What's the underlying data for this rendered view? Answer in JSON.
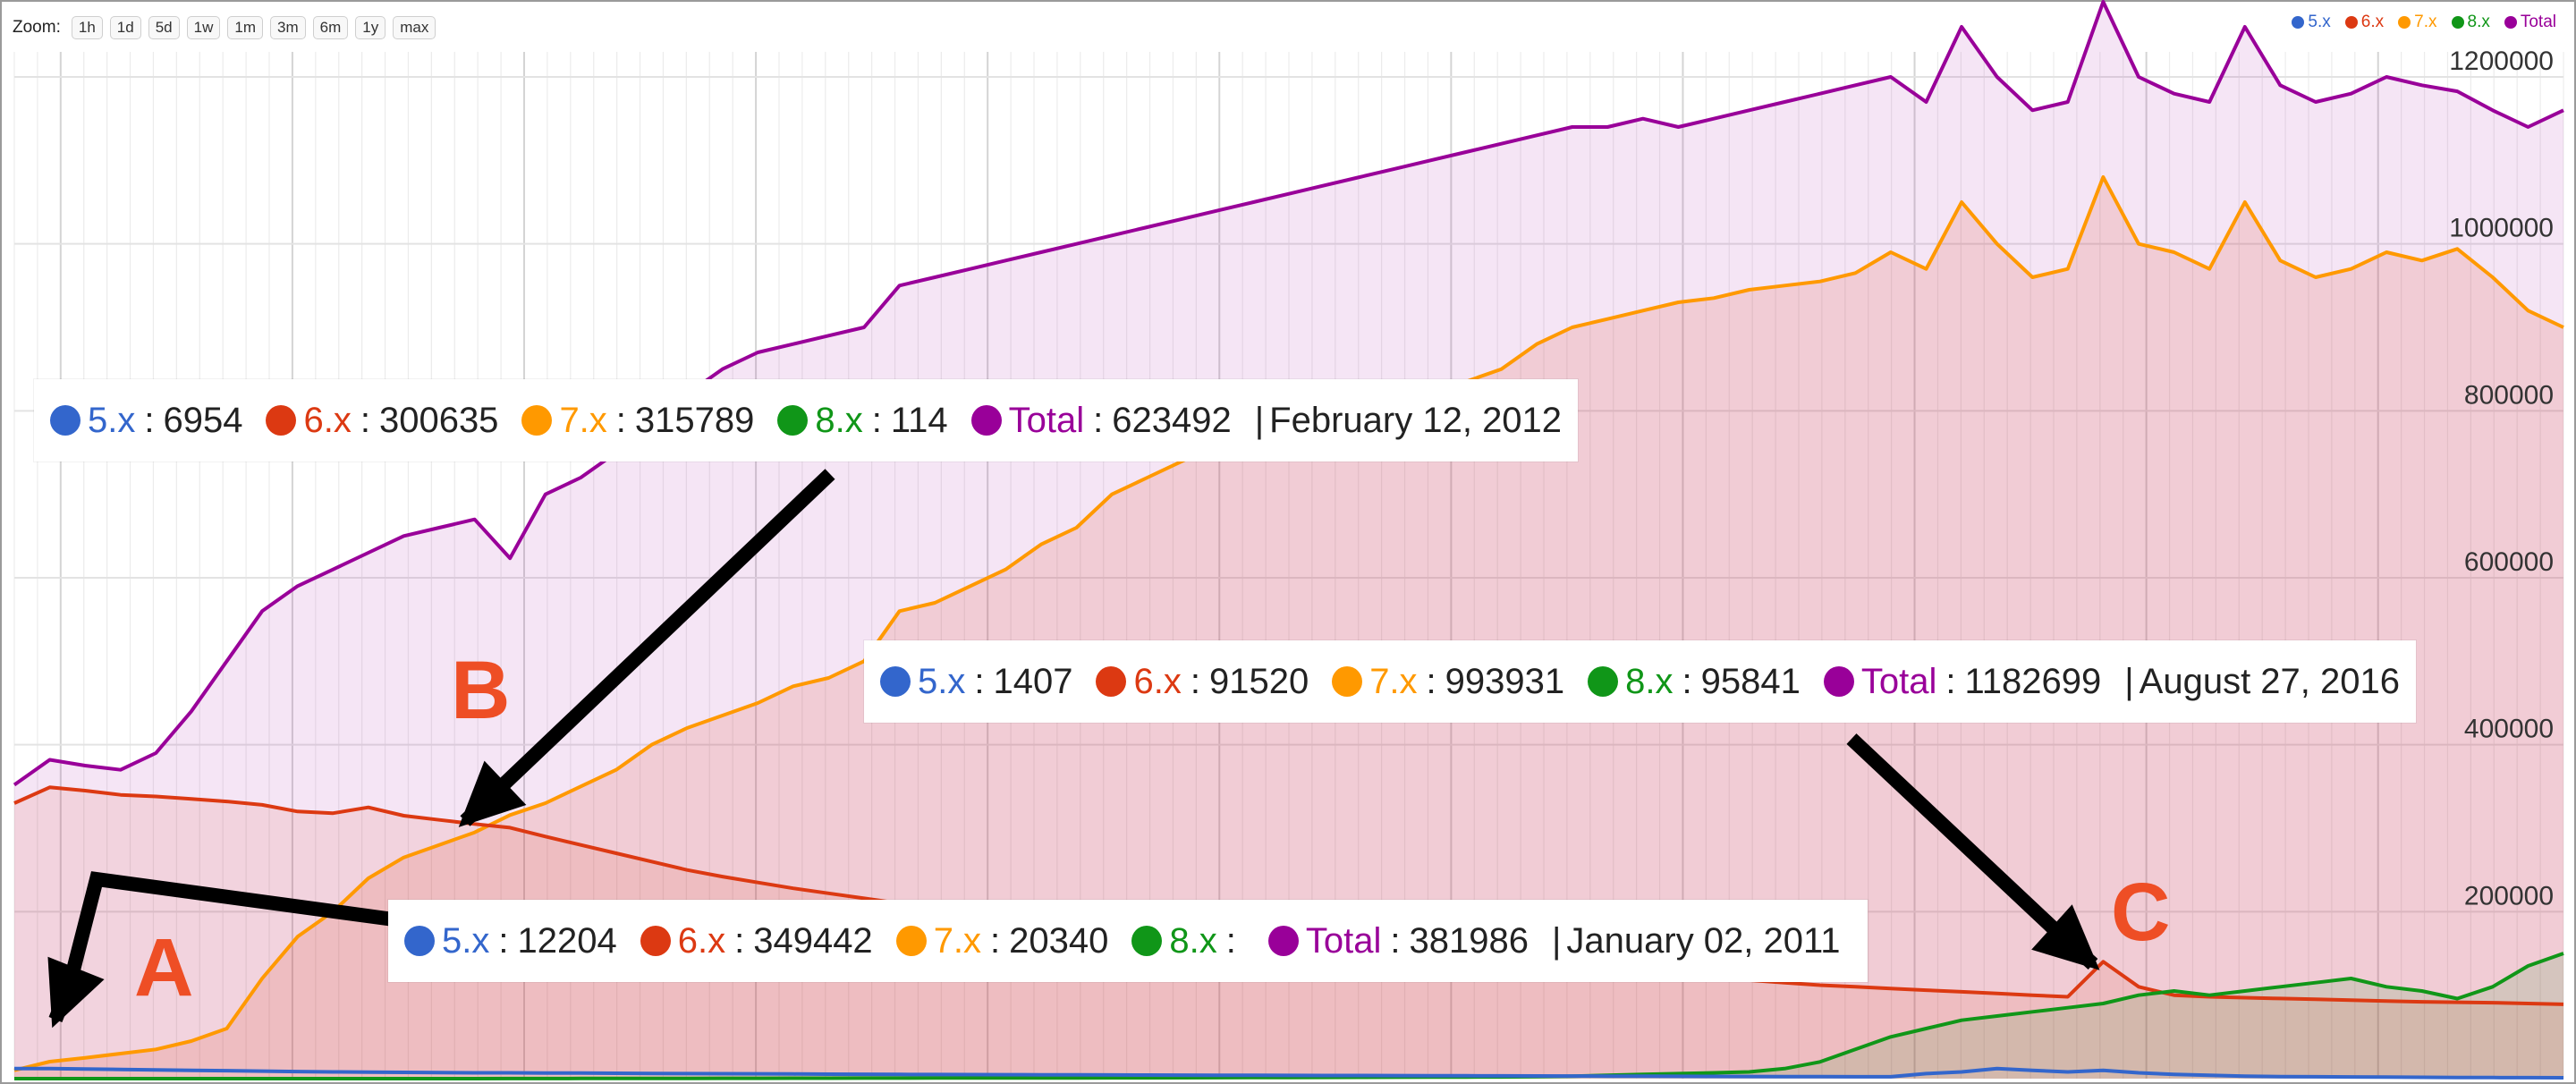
{
  "toolbar": {
    "zoom_label": "Zoom:",
    "zoom_buttons": [
      "1h",
      "1d",
      "5d",
      "1w",
      "1m",
      "3m",
      "6m",
      "1y",
      "max"
    ]
  },
  "colors": {
    "v5": "#3366cc",
    "v6": "#dc3912",
    "v7": "#ff9900",
    "v8": "#109618",
    "total": "#990099",
    "callout": "#ee4e25",
    "arrow": "#000000"
  },
  "legend": [
    {
      "label": "5.x",
      "color": "#3366cc"
    },
    {
      "label": "6.x",
      "color": "#dc3912"
    },
    {
      "label": "7.x",
      "color": "#ff9900"
    },
    {
      "label": "8.x",
      "color": "#109618"
    },
    {
      "label": "Total",
      "color": "#990099"
    }
  ],
  "tooltips": [
    {
      "items": [
        {
          "label": "5.x",
          "value": "6954",
          "color": "#3366cc"
        },
        {
          "label": "6.x",
          "value": "300635",
          "color": "#dc3912"
        },
        {
          "label": "7.x",
          "value": "315789",
          "color": "#ff9900"
        },
        {
          "label": "8.x",
          "value": "114",
          "color": "#109618"
        },
        {
          "label": "Total",
          "value": "623492",
          "color": "#990099"
        }
      ],
      "date": "February 12, 2012"
    },
    {
      "items": [
        {
          "label": "5.x",
          "value": "1407",
          "color": "#3366cc"
        },
        {
          "label": "6.x",
          "value": "91520",
          "color": "#dc3912"
        },
        {
          "label": "7.x",
          "value": "993931",
          "color": "#ff9900"
        },
        {
          "label": "8.x",
          "value": "95841",
          "color": "#109618"
        },
        {
          "label": "Total",
          "value": "1182699",
          "color": "#990099"
        }
      ],
      "date": "August 27, 2016"
    },
    {
      "items": [
        {
          "label": "5.x",
          "value": "12204",
          "color": "#3366cc"
        },
        {
          "label": "6.x",
          "value": "349442",
          "color": "#dc3912"
        },
        {
          "label": "7.x",
          "value": "20340",
          "color": "#ff9900"
        },
        {
          "label": "8.x",
          "value": "",
          "color": "#109618"
        },
        {
          "label": "Total",
          "value": "381986",
          "color": "#990099"
        }
      ],
      "date": "January 02, 2011"
    }
  ],
  "callouts": {
    "a": "A",
    "b": "B",
    "c": "C"
  },
  "chart_data": {
    "type": "area",
    "x_start": "2010-12",
    "x_end": "2017-01",
    "ylim": [
      0,
      1230000
    ],
    "y_ticks": [
      200000,
      400000,
      600000,
      800000,
      1000000,
      1200000
    ],
    "y_tick_labels": [
      "200000",
      "400000",
      "600000",
      "800000",
      "1000000",
      "1200000"
    ],
    "grid": true,
    "legend_position": "top-right",
    "x": [
      "2010-12",
      "2011-01",
      "2011-02",
      "2011-03",
      "2011-04",
      "2011-05",
      "2011-06",
      "2011-07",
      "2011-08",
      "2011-09",
      "2011-10",
      "2011-11",
      "2011-12",
      "2012-01",
      "2012-02",
      "2012-03",
      "2012-04",
      "2012-05",
      "2012-06",
      "2012-07",
      "2012-08",
      "2012-09",
      "2012-10",
      "2012-11",
      "2012-12",
      "2013-01",
      "2013-02",
      "2013-03",
      "2013-04",
      "2013-05",
      "2013-06",
      "2013-07",
      "2013-08",
      "2013-09",
      "2013-10",
      "2013-11",
      "2013-12",
      "2014-01",
      "2014-02",
      "2014-03",
      "2014-04",
      "2014-05",
      "2014-06",
      "2014-07",
      "2014-08",
      "2014-09",
      "2014-10",
      "2014-11",
      "2014-12",
      "2015-01",
      "2015-02",
      "2015-03",
      "2015-04",
      "2015-05",
      "2015-06",
      "2015-07",
      "2015-08",
      "2015-09",
      "2015-10",
      "2015-11",
      "2015-12",
      "2016-01",
      "2016-02",
      "2016-03",
      "2016-04",
      "2016-05",
      "2016-06",
      "2016-07",
      "2016-08",
      "2016-09",
      "2016-10",
      "2016-11",
      "2016-12"
    ],
    "series": [
      {
        "name": "5.x",
        "values": [
          12000,
          12000,
          11500,
          11000,
          10500,
          10000,
          9500,
          9000,
          8500,
          8000,
          7800,
          7500,
          7200,
          7000,
          6954,
          6800,
          6600,
          6400,
          6200,
          6000,
          5900,
          5800,
          5600,
          5400,
          5200,
          5000,
          4900,
          4800,
          4700,
          4600,
          4500,
          4400,
          4300,
          4200,
          4100,
          4000,
          3900,
          3800,
          3700,
          3600,
          3500,
          3400,
          3300,
          3200,
          3100,
          3000,
          2900,
          2800,
          2700,
          2600,
          2500,
          2400,
          2300,
          2200,
          6000,
          8000,
          12000,
          10000,
          8000,
          10000,
          7000,
          5000,
          4000,
          3000,
          2500,
          2200,
          2000,
          1800,
          1600,
          1407,
          1300,
          1200,
          1100
        ]
      },
      {
        "name": "6.x",
        "values": [
          330000,
          349000,
          345000,
          340000,
          338000,
          335000,
          332000,
          328000,
          320000,
          318000,
          325000,
          315000,
          310000,
          305000,
          300635,
          290000,
          280000,
          270000,
          260000,
          250000,
          242000,
          235000,
          228000,
          222000,
          216000,
          210000,
          205000,
          200000,
          195000,
          190000,
          185000,
          180000,
          176000,
          172000,
          168000,
          164000,
          160000,
          156000,
          152000,
          148000,
          145000,
          142000,
          139000,
          136000,
          133000,
          130000,
          127000,
          124000,
          121000,
          118000,
          115000,
          112000,
          110000,
          108000,
          106000,
          104000,
          102000,
          100000,
          98000,
          140000,
          110000,
          100000,
          98000,
          97000,
          96000,
          95000,
          94000,
          93000,
          92000,
          91520,
          91000,
          90000,
          89000
        ]
      },
      {
        "name": "7.x",
        "values": [
          10000,
          20340,
          25000,
          30000,
          35000,
          45000,
          60000,
          120000,
          170000,
          200000,
          240000,
          265000,
          280000,
          295000,
          315789,
          330000,
          350000,
          370000,
          400000,
          420000,
          435000,
          450000,
          470000,
          480000,
          500000,
          560000,
          570000,
          590000,
          610000,
          640000,
          660000,
          700000,
          720000,
          740000,
          760000,
          775000,
          785000,
          795000,
          805000,
          815000,
          825000,
          835000,
          850000,
          880000,
          900000,
          910000,
          920000,
          930000,
          935000,
          945000,
          950000,
          955000,
          965000,
          990000,
          970000,
          1050000,
          1000000,
          960000,
          970000,
          1080000,
          1000000,
          990000,
          970000,
          1050000,
          980000,
          960000,
          970000,
          990000,
          980000,
          993931,
          960000,
          920000,
          900000
        ]
      },
      {
        "name": "8.x",
        "values": [
          0,
          0,
          0,
          0,
          0,
          0,
          0,
          0,
          0,
          0,
          0,
          0,
          0,
          0,
          114,
          150,
          200,
          250,
          300,
          350,
          400,
          450,
          500,
          550,
          600,
          650,
          700,
          750,
          800,
          850,
          900,
          950,
          1000,
          1100,
          1200,
          1300,
          1400,
          1500,
          1600,
          1700,
          1800,
          1900,
          2000,
          2500,
          3000,
          4000,
          5000,
          6000,
          7000,
          8000,
          12000,
          20000,
          35000,
          50000,
          60000,
          70000,
          75000,
          80000,
          85000,
          90000,
          100000,
          105000,
          100000,
          105000,
          110000,
          115000,
          120000,
          110000,
          105000,
          95841,
          110000,
          135000,
          150000
        ]
      },
      {
        "name": "Total",
        "values": [
          352000,
          381986,
          375000,
          370000,
          390000,
          440000,
          500000,
          560000,
          590000,
          610000,
          630000,
          650000,
          660000,
          670000,
          623492,
          700000,
          720000,
          750000,
          790000,
          820000,
          850000,
          870000,
          880000,
          890000,
          900000,
          950000,
          960000,
          970000,
          980000,
          990000,
          1000000,
          1010000,
          1020000,
          1030000,
          1040000,
          1050000,
          1060000,
          1070000,
          1080000,
          1090000,
          1100000,
          1110000,
          1120000,
          1130000,
          1140000,
          1140000,
          1150000,
          1140000,
          1150000,
          1160000,
          1170000,
          1180000,
          1190000,
          1200000,
          1170000,
          1260000,
          1200000,
          1160000,
          1170000,
          1290000,
          1200000,
          1180000,
          1170000,
          1260000,
          1190000,
          1170000,
          1180000,
          1200000,
          1190000,
          1182699,
          1160000,
          1140000,
          1160000
        ]
      }
    ]
  }
}
